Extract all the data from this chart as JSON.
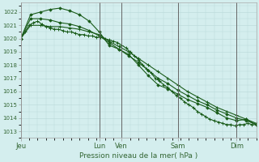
{
  "background_color": "#d4eeee",
  "grid_color": "#b8d8d8",
  "line_color": "#1a5c1a",
  "marker_color": "#1a5c1a",
  "xlabel": "Pression niveau de la mer( hPa )",
  "ylim": [
    1012.8,
    1022.7
  ],
  "yticks": [
    1013,
    1014,
    1015,
    1016,
    1017,
    1018,
    1019,
    1020,
    1021,
    1022
  ],
  "xlim": [
    0,
    168
  ],
  "vline_positions": [
    0,
    56,
    72,
    112,
    154
  ],
  "xtick_positions": [
    0,
    56,
    72,
    112,
    154
  ],
  "xtick_labels": [
    "Jeu",
    "Lun",
    "Ven",
    "Sam",
    "Dim"
  ],
  "series1": {
    "x": [
      0,
      3,
      6,
      9,
      12,
      15,
      18,
      21,
      24,
      27,
      30,
      33,
      36,
      39,
      42,
      45,
      48,
      51,
      54,
      57,
      60,
      63,
      66,
      69,
      72,
      75,
      78,
      81,
      84,
      87,
      90,
      93,
      96,
      99,
      102,
      105,
      108,
      111,
      114,
      117,
      120,
      123,
      126,
      129,
      132,
      135,
      138,
      141,
      144,
      147,
      150,
      153,
      156,
      159,
      162,
      165,
      168
    ],
    "y": [
      1020.0,
      1020.5,
      1021.0,
      1021.2,
      1021.3,
      1021.1,
      1020.9,
      1020.8,
      1020.7,
      1020.7,
      1020.6,
      1020.5,
      1020.5,
      1020.4,
      1020.3,
      1020.3,
      1020.2,
      1020.2,
      1020.1,
      1020.1,
      1020.0,
      1019.9,
      1019.8,
      1019.7,
      1019.5,
      1019.3,
      1019.0,
      1018.7,
      1018.4,
      1018.0,
      1017.7,
      1017.4,
      1017.0,
      1016.8,
      1016.5,
      1016.3,
      1016.0,
      1015.7,
      1015.5,
      1015.2,
      1015.0,
      1014.8,
      1014.5,
      1014.3,
      1014.1,
      1013.9,
      1013.8,
      1013.7,
      1013.6,
      1013.5,
      1013.5,
      1013.4,
      1013.5,
      1013.5,
      1013.6,
      1013.5,
      1013.5
    ]
  },
  "series2": {
    "x": [
      0,
      7,
      14,
      21,
      28,
      35,
      42,
      49,
      56,
      63,
      70,
      77,
      84,
      91,
      98,
      105,
      112,
      119,
      126,
      133,
      140,
      147,
      154,
      161,
      168
    ],
    "y": [
      1020.0,
      1021.8,
      1022.0,
      1022.2,
      1022.3,
      1022.1,
      1021.8,
      1021.3,
      1020.5,
      1019.5,
      1019.2,
      1018.8,
      1018.0,
      1017.2,
      1016.5,
      1016.2,
      1015.8,
      1015.4,
      1015.1,
      1014.8,
      1014.4,
      1014.0,
      1013.8,
      1013.9,
      1013.5
    ]
  },
  "series3": {
    "x": [
      0,
      7,
      14,
      21,
      28,
      35,
      42,
      49,
      56,
      63,
      70,
      77,
      84,
      91,
      98,
      105,
      112,
      119,
      126,
      133,
      140,
      147,
      154,
      161,
      168
    ],
    "y": [
      1020.0,
      1021.5,
      1021.5,
      1021.4,
      1021.2,
      1021.1,
      1020.9,
      1020.6,
      1020.2,
      1019.7,
      1019.2,
      1018.7,
      1018.2,
      1017.6,
      1017.0,
      1016.6,
      1016.1,
      1015.7,
      1015.3,
      1015.0,
      1014.6,
      1014.3,
      1014.0,
      1013.8,
      1013.5
    ]
  },
  "series4": {
    "x": [
      0,
      7,
      14,
      21,
      28,
      35,
      42,
      49,
      56,
      63,
      70,
      77,
      84,
      91,
      98,
      105,
      112,
      119,
      126,
      133,
      140,
      147,
      154,
      161,
      168
    ],
    "y": [
      1020.0,
      1021.0,
      1021.0,
      1020.9,
      1020.9,
      1020.8,
      1020.7,
      1020.5,
      1020.3,
      1019.8,
      1019.4,
      1019.0,
      1018.5,
      1018.0,
      1017.5,
      1017.0,
      1016.5,
      1016.0,
      1015.6,
      1015.2,
      1014.8,
      1014.5,
      1014.2,
      1013.9,
      1013.6
    ]
  }
}
